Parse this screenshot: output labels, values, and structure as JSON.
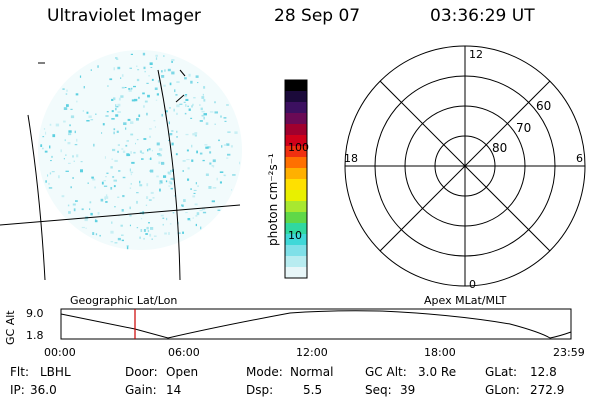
{
  "header": {
    "title": "Ultraviolet Imager",
    "date": "28 Sep 07",
    "time": "03:36:29 UT"
  },
  "colorbar": {
    "unit_label": "photon cm⁻²s⁻¹",
    "tick_labels": [
      "100",
      "10"
    ],
    "colors": [
      "#000000",
      "#1b0a3a",
      "#3c1060",
      "#6a0a55",
      "#a0002e",
      "#d0001a",
      "#f03010",
      "#ff7000",
      "#ffb000",
      "#ffe000",
      "#e8f000",
      "#a8e830",
      "#60d848",
      "#30d8a0",
      "#40d8d8",
      "#80e0e8",
      "#b8ecf0",
      "#e8f6f8"
    ]
  },
  "polar_plot": {
    "hour_labels": [
      "12",
      "18",
      "6",
      "0"
    ],
    "lat_labels": [
      "60",
      "70",
      "80"
    ]
  },
  "map_panel": {
    "left_label": "Geographic Lat/Lon",
    "right_label": "Apex MLat/MLT"
  },
  "altitude_plot": {
    "axis_label": "GC Alt",
    "y_labels": [
      "9.0",
      "1.8"
    ],
    "x_labels": [
      "00:00",
      "06:00",
      "12:00",
      "18:00",
      "23:59"
    ],
    "marker_color": "#cc0000"
  },
  "info": {
    "flt_label": "Flt:",
    "flt_value": "LBHL",
    "ip_label": "IP:",
    "ip_value": "36.0",
    "door_label": "Door:",
    "door_value": "Open",
    "gain_label": "Gain:",
    "gain_value": "14",
    "mode_label": "Mode:",
    "mode_value": "Normal",
    "dsp_label": "Dsp:",
    "dsp_value": "5.5",
    "gcalt_label": "GC Alt:",
    "gcalt_value": "3.0 Re",
    "seq_label": "Seq:",
    "seq_value": "39",
    "glat_label": "GLat:",
    "glat_value": "12.8",
    "glon_label": "GLon:",
    "glon_value": "272.9"
  }
}
